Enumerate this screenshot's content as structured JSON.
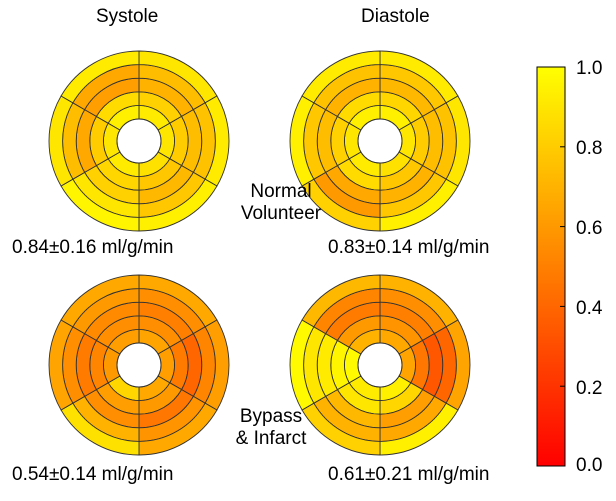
{
  "columns": [
    "Systole",
    "Diastole"
  ],
  "rows": [
    {
      "label_lines": [
        "Normal",
        "Volunteer"
      ]
    },
    {
      "label_lines": [
        "Bypass",
        "& Infarct"
      ]
    }
  ],
  "panels": [
    {
      "column": "Systole",
      "row": "Normal Volunteer",
      "value_text": "0.84±0.16 ml/g/min",
      "rings": [
        [
          0.92,
          0.9,
          0.88,
          0.92,
          0.9,
          0.94
        ],
        [
          0.82,
          0.8,
          0.78,
          0.84,
          0.8,
          0.86
        ],
        [
          0.7,
          0.74,
          0.72,
          0.82,
          0.66,
          0.62
        ],
        [
          0.74,
          0.76,
          0.78,
          0.9,
          0.74,
          0.66
        ],
        [
          0.9,
          0.92,
          0.94,
          0.96,
          0.9,
          0.92
        ]
      ]
    },
    {
      "column": "Diastole",
      "row": "Normal Volunteer",
      "value_text": "0.83±0.14 ml/g/min",
      "rings": [
        [
          0.94,
          0.9,
          0.88,
          0.92,
          0.9,
          0.94
        ],
        [
          0.84,
          0.8,
          0.78,
          0.86,
          0.82,
          0.86
        ],
        [
          0.72,
          0.74,
          0.7,
          0.66,
          0.74,
          0.7
        ],
        [
          0.78,
          0.76,
          0.78,
          0.6,
          0.78,
          0.76
        ],
        [
          0.92,
          0.9,
          0.94,
          0.82,
          0.94,
          0.92
        ]
      ]
    },
    {
      "column": "Systole",
      "row": "Bypass & Infarct",
      "value_text": "0.54±0.14 ml/g/min",
      "rings": [
        [
          0.64,
          0.62,
          0.66,
          0.84,
          0.6,
          0.62
        ],
        [
          0.56,
          0.48,
          0.6,
          0.62,
          0.52,
          0.56
        ],
        [
          0.5,
          0.4,
          0.46,
          0.56,
          0.48,
          0.54
        ],
        [
          0.56,
          0.52,
          0.58,
          0.7,
          0.56,
          0.6
        ],
        [
          0.66,
          0.62,
          0.66,
          0.88,
          0.64,
          0.66
        ]
      ]
    },
    {
      "column": "Diastole",
      "row": "Bypass & Infarct",
      "value_text": "0.61±0.21 ml/g/min",
      "rings": [
        [
          0.66,
          0.64,
          0.94,
          0.92,
          0.98,
          0.7
        ],
        [
          0.58,
          0.46,
          0.84,
          0.9,
          0.96,
          0.6
        ],
        [
          0.5,
          0.34,
          0.62,
          0.72,
          0.92,
          0.48
        ],
        [
          0.56,
          0.4,
          0.66,
          0.7,
          0.9,
          0.52
        ],
        [
          0.7,
          0.64,
          0.94,
          0.82,
          0.98,
          0.72
        ]
      ]
    }
  ],
  "colorbar": {
    "min": 0.0,
    "max": 1.0,
    "tick_labels": [
      "1.0",
      "0.8",
      "0.6",
      "0.4",
      "0.2",
      "0.0"
    ],
    "tick_values": [
      1.0,
      0.8,
      0.6,
      0.4,
      0.2,
      0.0
    ],
    "colormap": [
      "#ff0000",
      "#ff8000",
      "#ffff00"
    ]
  }
}
